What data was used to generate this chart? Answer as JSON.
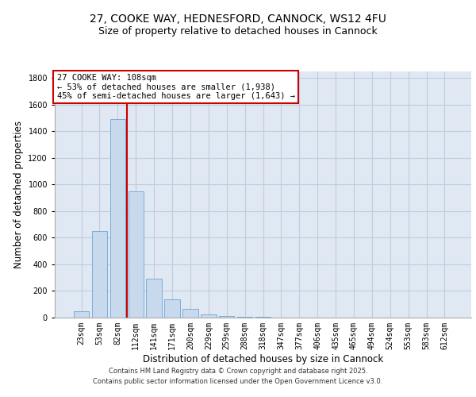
{
  "title_line1": "27, COOKE WAY, HEDNESFORD, CANNOCK, WS12 4FU",
  "title_line2": "Size of property relative to detached houses in Cannock",
  "xlabel": "Distribution of detached houses by size in Cannock",
  "ylabel": "Number of detached properties",
  "categories": [
    "23sqm",
    "53sqm",
    "82sqm",
    "112sqm",
    "141sqm",
    "171sqm",
    "200sqm",
    "229sqm",
    "259sqm",
    "288sqm",
    "318sqm",
    "347sqm",
    "377sqm",
    "406sqm",
    "435sqm",
    "465sqm",
    "494sqm",
    "524sqm",
    "553sqm",
    "583sqm",
    "612sqm"
  ],
  "values": [
    50,
    650,
    1490,
    950,
    290,
    135,
    65,
    25,
    10,
    5,
    3,
    2,
    2,
    1,
    0,
    0,
    0,
    0,
    0,
    0,
    0
  ],
  "bar_color": "#c8d9ee",
  "bar_edge_color": "#7aaed6",
  "vline_color": "#cc0000",
  "annotation_line1": "27 COOKE WAY: 108sqm",
  "annotation_line2": "← 53% of detached houses are smaller (1,938)",
  "annotation_line3": "45% of semi-detached houses are larger (1,643) →",
  "annotation_box_color": "#cc0000",
  "ylim": [
    0,
    1850
  ],
  "yticks": [
    0,
    200,
    400,
    600,
    800,
    1000,
    1200,
    1400,
    1600,
    1800
  ],
  "grid_color": "#c0ccdc",
  "bg_color": "#e0e8f3",
  "footer1": "Contains HM Land Registry data © Crown copyright and database right 2025.",
  "footer2": "Contains public sector information licensed under the Open Government Licence v3.0.",
  "title_fontsize": 10,
  "subtitle_fontsize": 9,
  "axis_label_fontsize": 8.5,
  "tick_fontsize": 7,
  "annotation_fontsize": 7.5,
  "footer_fontsize": 6
}
